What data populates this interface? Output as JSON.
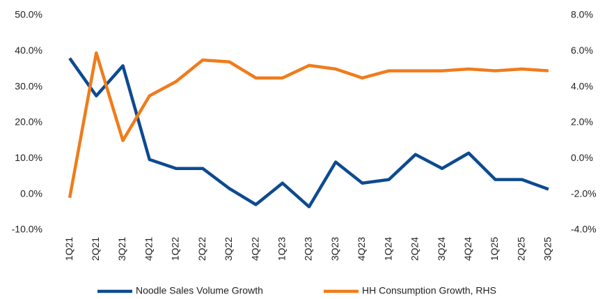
{
  "chart_data": {
    "type": "line",
    "categories": [
      "1Q21",
      "2Q21",
      "3Q21",
      "4Q21",
      "1Q22",
      "2Q22",
      "3Q22",
      "4Q22",
      "1Q23",
      "2Q23",
      "3Q23",
      "4Q23",
      "1Q24",
      "2Q24",
      "3Q24",
      "4Q24",
      "1Q25",
      "2Q25",
      "3Q25"
    ],
    "series": [
      {
        "name": "Noodle Sales Volume Growth",
        "color": "#0d4a91",
        "values": [
          38.0,
          27.5,
          35.9,
          9.7,
          7.2,
          7.2,
          1.6,
          -2.9,
          3.1,
          -3.5,
          9.0,
          3.1,
          4.1,
          11.1,
          7.2,
          11.5,
          4.1,
          4.1,
          1.4
        ]
      },
      {
        "name": "HH Consumption Growth, RHS",
        "color": "#f07c1b",
        "axis": "y2",
        "values": [
          -2.2,
          5.9,
          1.0,
          3.5,
          4.3,
          5.5,
          5.4,
          4.5,
          4.5,
          5.2,
          5.0,
          4.5,
          4.9,
          4.9,
          4.9,
          5.0,
          4.9,
          5.0,
          4.9
        ]
      }
    ],
    "ylim": [
      -10,
      50
    ],
    "yticks": [
      {
        "value": 50,
        "label": "50.0%"
      },
      {
        "value": 40,
        "label": "40.0%"
      },
      {
        "value": 30,
        "label": "30.0%"
      },
      {
        "value": 20,
        "label": "20.0%"
      },
      {
        "value": 10,
        "label": "10.0%"
      },
      {
        "value": 0,
        "label": "0.0%"
      },
      {
        "value": -10,
        "label": "-10.0%"
      }
    ],
    "y2lim": [
      -4,
      8
    ],
    "y2ticks": [
      {
        "value": 8,
        "label": "8.0%"
      },
      {
        "value": 6,
        "label": "6.0%"
      },
      {
        "value": 4,
        "label": "4.0%"
      },
      {
        "value": 2,
        "label": "2.0%"
      },
      {
        "value": 0,
        "label": "0.0%"
      },
      {
        "value": -2,
        "label": "-2.0%"
      },
      {
        "value": -4,
        "label": "-4.0%"
      }
    ],
    "grid": false
  }
}
